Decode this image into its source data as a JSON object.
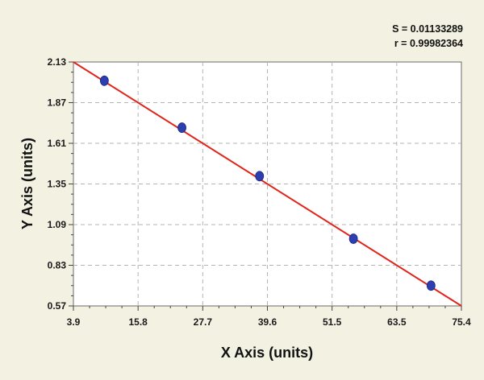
{
  "chart_data": {
    "type": "scatter",
    "title": "",
    "xlabel": "X Axis (units)",
    "ylabel": "Y Axis (units)",
    "xlim": [
      3.9,
      75.4
    ],
    "ylim": [
      0.57,
      2.13
    ],
    "x_ticks": [
      "3.9",
      "15.8",
      "27.7",
      "39.6",
      "51.5",
      "63.5",
      "75.4"
    ],
    "y_ticks": [
      "0.57",
      "0.83",
      "1.09",
      "1.35",
      "1.61",
      "1.87",
      "2.13"
    ],
    "grid": true,
    "series": [
      {
        "type": "scatter",
        "color": "#2d3fb0",
        "x": [
          9.6,
          23.9,
          38.2,
          55.5,
          69.8
        ],
        "y": [
          2.01,
          1.71,
          1.4,
          1.0,
          0.7
        ]
      },
      {
        "type": "line",
        "color": "#e0251b",
        "x": [
          3.9,
          75.4
        ],
        "y": [
          2.13,
          0.57
        ]
      }
    ],
    "annotations": {
      "s_text": "S = 0.01133289",
      "r_text": "r = 0.99982364"
    }
  }
}
